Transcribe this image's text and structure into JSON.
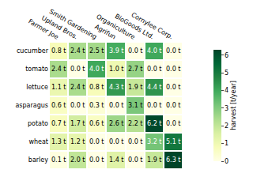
{
  "chart_data": {
    "type": "heatmap",
    "x": [
      "Farmer Joe",
      "Upland Bros.",
      "Smith Gardening",
      "Agrifun",
      "Organiculture",
      "BioGoods Ltd.",
      "Cornylee Corp."
    ],
    "y": [
      "cucumber",
      "tomato",
      "lettuce",
      "asparagus",
      "potato",
      "wheat",
      "barley"
    ],
    "z": [
      [
        0.8,
        2.4,
        2.5,
        3.9,
        0.0,
        4.0,
        0.0
      ],
      [
        2.4,
        0.0,
        4.0,
        1.0,
        2.7,
        0.0,
        0.0
      ],
      [
        1.1,
        2.4,
        0.8,
        4.3,
        1.9,
        4.4,
        0.0
      ],
      [
        0.6,
        0.0,
        0.3,
        0.0,
        3.1,
        0.0,
        0.0
      ],
      [
        0.7,
        1.7,
        0.6,
        2.6,
        2.2,
        6.2,
        0.0
      ],
      [
        1.3,
        1.2,
        0.0,
        0.0,
        0.0,
        3.2,
        5.1
      ],
      [
        0.1,
        2.0,
        0.0,
        1.4,
        0.0,
        1.9,
        6.3
      ]
    ],
    "value_labels": [
      [
        "0.8 t",
        "2.4 t",
        "2.5 t",
        "3.9 t",
        "0.0 t",
        "4.0 t",
        "0.0 t"
      ],
      [
        "2.4 t",
        "0.0 t",
        "4.0 t",
        "1.0 t",
        "2.7 t",
        "0.0 t",
        "0.0 t"
      ],
      [
        "1.1 t",
        "2.4 t",
        "0.8 t",
        "4.3 t",
        "1.9 t",
        "4.4 t",
        "0.0 t"
      ],
      [
        "0.6 t",
        "0.0 t",
        "0.3 t",
        "0.0 t",
        "3.1 t",
        "0.0 t",
        "0.0 t"
      ],
      [
        "0.7 t",
        "1.7 t",
        "0.6 t",
        "2.6 t",
        "2.2 t",
        "6.2 t",
        "0.0 t"
      ],
      [
        "1.3 t",
        "1.2 t",
        "0.0 t",
        "0.0 t",
        "0.0 t",
        "3.2 t",
        "5.1 t"
      ],
      [
        "0.1 t",
        "2.0 t",
        "0.0 t",
        "1.4 t",
        "0.0 t",
        "1.9 t",
        "6.3 t"
      ]
    ],
    "colorbar": {
      "title": "harvest [t/year]",
      "range": [
        0,
        6.3
      ],
      "ticks": [
        0,
        1,
        2,
        3,
        4,
        5,
        6
      ]
    },
    "data_labels": true,
    "grid": false
  }
}
